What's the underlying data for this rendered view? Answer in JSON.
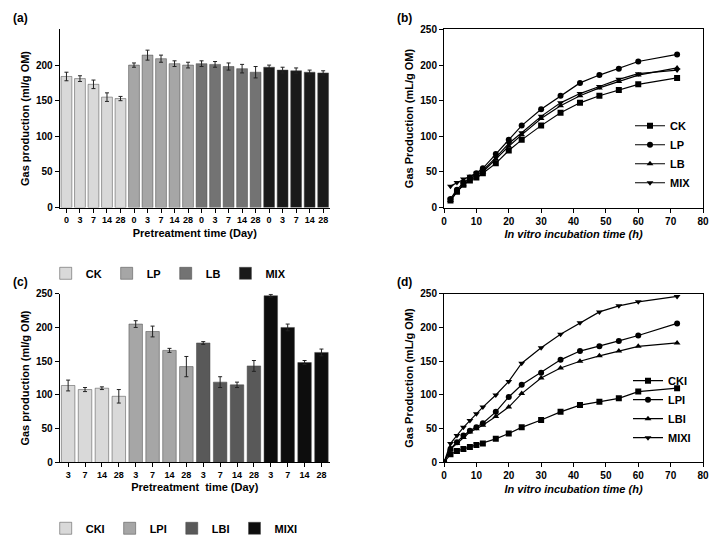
{
  "chart_data": [
    {
      "type": "bar",
      "title": "(a)",
      "x_label": "Pretreatment time (Day)",
      "y_label": "Gas production (ml/g OM)",
      "ylim": [
        0,
        250
      ],
      "yticks": [
        0,
        50,
        100,
        150,
        200
      ],
      "grid": false,
      "legend": "bottom",
      "series": [
        {
          "name": "CK",
          "color": "#d9d9d9",
          "categories": [
            "0",
            "3",
            "7",
            "14",
            "28"
          ],
          "values": [
            184,
            181,
            173,
            155,
            153
          ],
          "errors": [
            6,
            4,
            6,
            6,
            3
          ]
        },
        {
          "name": "LP",
          "color": "#a6a6a6",
          "categories": [
            "0",
            "3",
            "7",
            "14",
            "28"
          ],
          "values": [
            200,
            214,
            209,
            202,
            200
          ],
          "errors": [
            3,
            7,
            5,
            4,
            4
          ]
        },
        {
          "name": "LB",
          "color": "#737373",
          "categories": [
            "0",
            "3",
            "7",
            "14",
            "28"
          ],
          "values": [
            202,
            201,
            198,
            195,
            190
          ],
          "errors": [
            4,
            4,
            5,
            6,
            8
          ]
        },
        {
          "name": "MIX",
          "color": "#1a1a1a",
          "categories": [
            "0",
            "3",
            "7",
            "14",
            "28"
          ],
          "values": [
            197,
            193,
            192,
            190,
            189
          ],
          "errors": [
            3,
            4,
            4,
            3,
            3
          ]
        }
      ]
    },
    {
      "type": "line",
      "title": "(b)",
      "x_label": "In vitro incubation time (h)",
      "y_label": "Gas Production (mL/g OM)",
      "x": [
        2,
        4,
        6,
        8,
        10,
        12,
        16,
        20,
        24,
        30,
        36,
        42,
        48,
        54,
        60,
        72
      ],
      "xlim": [
        0,
        80
      ],
      "xticks": [
        0,
        10,
        20,
        30,
        40,
        50,
        60,
        70,
        80
      ],
      "ylim": [
        0,
        250
      ],
      "yticks": [
        0,
        50,
        100,
        150,
        200,
        250
      ],
      "grid": false,
      "legend": "lower right",
      "series": [
        {
          "name": "CK",
          "color": "#000000",
          "marker": "square",
          "values": [
            10,
            22,
            32,
            38,
            42,
            48,
            62,
            80,
            95,
            115,
            133,
            147,
            157,
            165,
            173,
            182
          ]
        },
        {
          "name": "LP",
          "color": "#000000",
          "marker": "circle",
          "values": [
            12,
            25,
            35,
            42,
            48,
            55,
            75,
            95,
            115,
            138,
            157,
            175,
            186,
            195,
            205,
            215
          ]
        },
        {
          "name": "LB",
          "color": "#000000",
          "marker": "triangle-up",
          "values": [
            10,
            22,
            32,
            40,
            45,
            50,
            68,
            86,
            102,
            125,
            143,
            157,
            168,
            177,
            186,
            196
          ]
        },
        {
          "name": "MIX",
          "color": "#000000",
          "marker": "triangle-down",
          "values": [
            30,
            35,
            40,
            44,
            48,
            52,
            70,
            90,
            105,
            128,
            147,
            160,
            170,
            180,
            188,
            193
          ]
        }
      ]
    },
    {
      "type": "bar",
      "title": "(c)",
      "x_label": "Pretreatment  time (Day)",
      "y_label": "Gas production (ml/g OM)",
      "ylim": [
        0,
        250
      ],
      "yticks": [
        0,
        50,
        100,
        150,
        200,
        250
      ],
      "grid": false,
      "legend": "bottom",
      "series": [
        {
          "name": "CKI",
          "color": "#d9d9d9",
          "categories": [
            "3",
            "7",
            "14",
            "28"
          ],
          "values": [
            114,
            108,
            110,
            98
          ],
          "errors": [
            8,
            3,
            2,
            10
          ]
        },
        {
          "name": "LPI",
          "color": "#a6a6a6",
          "categories": [
            "3",
            "7",
            "14",
            "28"
          ],
          "values": [
            205,
            194,
            166,
            142
          ],
          "errors": [
            5,
            8,
            3,
            15
          ]
        },
        {
          "name": "LBI",
          "color": "#595959",
          "categories": [
            "3",
            "7",
            "14",
            "28"
          ],
          "values": [
            177,
            119,
            115,
            143
          ],
          "errors": [
            2,
            8,
            4,
            8
          ]
        },
        {
          "name": "MIXI",
          "color": "#0d0d0d",
          "categories": [
            "3",
            "7",
            "14",
            "28"
          ],
          "values": [
            247,
            200,
            148,
            163
          ],
          "errors": [
            2,
            5,
            3,
            5
          ]
        }
      ]
    },
    {
      "type": "line",
      "title": "(d)",
      "x_label": "In vitro incubation time (h)",
      "y_label": "Gas Production (mL/g OM)",
      "x": [
        0,
        2,
        4,
        6,
        8,
        10,
        12,
        16,
        20,
        24,
        30,
        36,
        42,
        48,
        54,
        60,
        72
      ],
      "xlim": [
        0,
        80
      ],
      "xticks": [
        0,
        10,
        20,
        30,
        40,
        50,
        60,
        70,
        80
      ],
      "ylim": [
        0,
        250
      ],
      "yticks": [
        0,
        50,
        100,
        150,
        200,
        250
      ],
      "grid": false,
      "legend": "lower right",
      "series": [
        {
          "name": "CKI",
          "color": "#000000",
          "marker": "square",
          "values": [
            0,
            12,
            17,
            20,
            23,
            26,
            28,
            35,
            43,
            52,
            63,
            75,
            85,
            90,
            95,
            105,
            110
          ]
        },
        {
          "name": "LPI",
          "color": "#000000",
          "marker": "circle",
          "values": [
            0,
            20,
            30,
            40,
            47,
            52,
            58,
            75,
            97,
            115,
            133,
            152,
            165,
            172,
            180,
            188,
            206
          ]
        },
        {
          "name": "LBI",
          "color": "#000000",
          "marker": "triangle-up",
          "values": [
            0,
            20,
            28,
            37,
            45,
            50,
            55,
            68,
            82,
            102,
            125,
            140,
            150,
            158,
            165,
            172,
            177
          ]
        },
        {
          "name": "MIXI",
          "color": "#000000",
          "marker": "triangle-down",
          "values": [
            0,
            28,
            40,
            52,
            62,
            72,
            82,
            100,
            120,
            147,
            170,
            190,
            207,
            223,
            232,
            238,
            246
          ]
        }
      ]
    }
  ]
}
